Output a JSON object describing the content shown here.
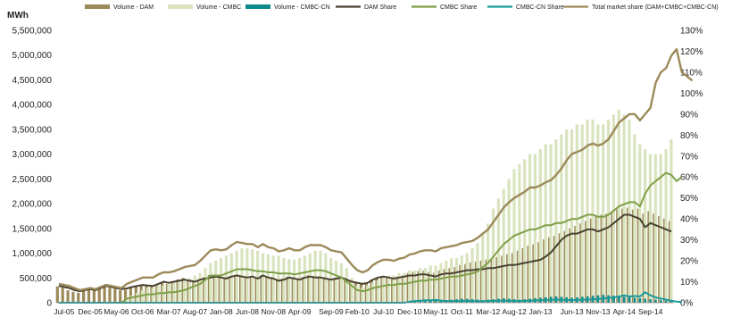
{
  "chart_data": {
    "type": "bar",
    "y_unit": "MWh",
    "y_left_lim": [
      0,
      5500000
    ],
    "y_left_ticks": [
      "0",
      "500,000",
      "1,000,000",
      "1,500,000",
      "2,000,000",
      "2,500,000",
      "3,000,000",
      "3,500,000",
      "4,000,000",
      "4,500,000",
      "5,000,000",
      "5,500,000"
    ],
    "y_right_lim": [
      0,
      130
    ],
    "y_right_ticks": [
      "0%",
      "10%",
      "20%",
      "30%",
      "40%",
      "50%",
      "60%",
      "70%",
      "80%",
      "90%",
      "100%",
      "110%",
      "120%",
      "130%"
    ],
    "x_tick_labels": [
      "Jul-05",
      "Dec-05",
      "May-06",
      "Oct-06",
      "Mar-07",
      "Aug-07",
      "Jan-08",
      "Jun-08",
      "Nov-08",
      "Apr-09",
      "Sep-09",
      "Feb-10",
      "Jul-10",
      "Dec-10",
      "May-11",
      "Oct-11",
      "Mar-12",
      "Aug-12",
      "Jan-13",
      "Jun-13",
      "Nov-13",
      "Apr-14",
      "Sep-14"
    ],
    "month_count": 118,
    "legend_position": "top",
    "legend": [
      {
        "label": "Volume - DAM",
        "kind": "bar",
        "color": "#9c8a5a"
      },
      {
        "label": "Volume - CMBC",
        "kind": "bar",
        "color": "#d9e4bf"
      },
      {
        "label": "Volume - CMBC-CN",
        "kind": "bar",
        "color": "#0e8a8a"
      },
      {
        "label": "DAM Share",
        "kind": "line",
        "color": "#4a4030"
      },
      {
        "label": "CMBC Share",
        "kind": "line",
        "color": "#7f9f48"
      },
      {
        "label": "CMBC-CN Share",
        "kind": "line",
        "color": "#1a9a9a"
      },
      {
        "label": "Total market share (DAM+CMBC+CMBC-CN)",
        "kind": "line",
        "color": "#9c8a5a"
      }
    ],
    "series": [
      {
        "name": "Volume - DAM",
        "axis": "left",
        "type": "bar",
        "color": "#9c8a5a",
        "values": [
          330000,
          300000,
          250000,
          220000,
          200000,
          240000,
          260000,
          250000,
          280000,
          320000,
          300000,
          280000,
          250000,
          260000,
          300000,
          330000,
          350000,
          340000,
          330000,
          360000,
          400000,
          380000,
          420000,
          470000,
          500000,
          450000,
          430000,
          470000,
          520000,
          560000,
          550000,
          520000,
          480000,
          540000,
          560000,
          530000,
          520000,
          540000,
          500000,
          560000,
          520000,
          510000,
          460000,
          490000,
          530000,
          500000,
          480000,
          520000,
          560000,
          540000,
          530000,
          500000,
          470000,
          500000,
          510000,
          480000,
          430000,
          420000,
          380000,
          400000,
          470000,
          510000,
          540000,
          520000,
          500000,
          530000,
          550000,
          600000,
          620000,
          640000,
          650000,
          620000,
          600000,
          650000,
          680000,
          700000,
          720000,
          760000,
          780000,
          810000,
          830000,
          850000,
          870000,
          880000,
          920000,
          950000,
          980000,
          1000000,
          1050000,
          1100000,
          1150000,
          1180000,
          1220000,
          1280000,
          1320000,
          1350000,
          1400000,
          1450000,
          1500000,
          1550000,
          1600000,
          1650000,
          1700000,
          1750000,
          1780000,
          1800000,
          1850000,
          1880000,
          1900000,
          1920000,
          1880000,
          1900000,
          1800000,
          1850000,
          1800000,
          1750000,
          1700000,
          1650000
        ]
      },
      {
        "name": "Volume - CMBC",
        "axis": "left",
        "type": "bar",
        "color": "#d9e4bf",
        "values": [
          0,
          0,
          0,
          0,
          0,
          0,
          0,
          0,
          0,
          0,
          0,
          0,
          0,
          100000,
          150000,
          200000,
          250000,
          300000,
          300000,
          350000,
          350000,
          380000,
          400000,
          420000,
          450000,
          500000,
          550000,
          600000,
          700000,
          800000,
          850000,
          900000,
          950000,
          1000000,
          1050000,
          1100000,
          1100000,
          1080000,
          1050000,
          1000000,
          980000,
          950000,
          950000,
          900000,
          880000,
          870000,
          900000,
          950000,
          1000000,
          1050000,
          1050000,
          1000000,
          900000,
          850000,
          800000,
          700000,
          500000,
          350000,
          300000,
          350000,
          400000,
          450000,
          500000,
          550000,
          550000,
          600000,
          600000,
          650000,
          650000,
          700000,
          700000,
          750000,
          750000,
          800000,
          850000,
          900000,
          900000,
          950000,
          1000000,
          1100000,
          1200000,
          1400000,
          1600000,
          1900000,
          2100000,
          2300000,
          2500000,
          2700000,
          2800000,
          2900000,
          3000000,
          3000000,
          3100000,
          3200000,
          3200000,
          3300000,
          3400000,
          3500000,
          3500000,
          3600000,
          3600000,
          3700000,
          3700000,
          3600000,
          3600000,
          3700000,
          3800000,
          3900000,
          3800000,
          3700000,
          3400000,
          3200000,
          3100000,
          3000000,
          3000000,
          3000000,
          3100000,
          3300000
        ]
      },
      {
        "name": "Volume - CMBC-CN",
        "axis": "left",
        "type": "bar",
        "color": "#0e8a8a",
        "values": [
          0,
          0,
          0,
          0,
          0,
          0,
          0,
          0,
          0,
          0,
          0,
          0,
          0,
          0,
          0,
          0,
          0,
          0,
          0,
          0,
          0,
          0,
          0,
          0,
          0,
          0,
          0,
          0,
          0,
          0,
          0,
          0,
          0,
          0,
          0,
          0,
          0,
          0,
          0,
          0,
          0,
          0,
          0,
          0,
          0,
          0,
          0,
          0,
          0,
          0,
          0,
          0,
          0,
          0,
          0,
          0,
          0,
          0,
          0,
          0,
          0,
          0,
          0,
          0,
          0,
          0,
          0,
          30000,
          40000,
          50000,
          60000,
          60000,
          70000,
          60000,
          50000,
          60000,
          70000,
          80000,
          80000,
          70000,
          60000,
          50000,
          60000,
          70000,
          80000,
          90000,
          80000,
          70000,
          60000,
          70000,
          80000,
          90000,
          100000,
          110000,
          120000,
          130000,
          120000,
          110000,
          100000,
          110000,
          120000,
          130000,
          140000,
          150000,
          160000,
          150000,
          140000,
          130000,
          120000,
          110000,
          100000,
          90000,
          80000,
          70000,
          60000,
          50000,
          40000,
          30000
        ]
      },
      {
        "name": "DAM Share",
        "axis": "right",
        "type": "line",
        "color": "#4a4030",
        "values": [
          8,
          7.5,
          7,
          6,
          5.5,
          6,
          6.5,
          6,
          7,
          8,
          7.5,
          7,
          6.5,
          6.8,
          7.5,
          8,
          8.5,
          8.2,
          8,
          9,
          10,
          9.5,
          10,
          10.5,
          11,
          10.5,
          10,
          11,
          11.5,
          12,
          12.5,
          12,
          11.5,
          12.5,
          13,
          12.5,
          12,
          12.5,
          11.5,
          13,
          12,
          11.5,
          10.5,
          11,
          12,
          11.5,
          11,
          12,
          12.5,
          12,
          12,
          11.5,
          11,
          11.5,
          12,
          11,
          10,
          9.5,
          9,
          9.5,
          11,
          12,
          12.5,
          12,
          11.5,
          12,
          12.5,
          13,
          13,
          13.5,
          13.5,
          13,
          12.5,
          13.5,
          14,
          14,
          14.5,
          15,
          15.5,
          15.5,
          16,
          16,
          16.5,
          16.5,
          17,
          17.5,
          18,
          18,
          18.5,
          19,
          19.5,
          20,
          20.5,
          22,
          24,
          27,
          30,
          32,
          33,
          33,
          34,
          35,
          35,
          34,
          35,
          36,
          38,
          40,
          42,
          42,
          41,
          40,
          36,
          38,
          37,
          36,
          35,
          34
        ]
      },
      {
        "name": "CMBC Share",
        "axis": "right",
        "type": "line",
        "color": "#7f9f48",
        "values": [
          0,
          0,
          0,
          0,
          0,
          0,
          0,
          0,
          0,
          0,
          0,
          0,
          0,
          2,
          2.5,
          3,
          3.5,
          4,
          4,
          4.5,
          4.5,
          5,
          5,
          5.5,
          6,
          7,
          8,
          9,
          11,
          13,
          13,
          13,
          14,
          15,
          16,
          16,
          16,
          15.5,
          15,
          15,
          14.5,
          14.5,
          14,
          14,
          14,
          13.5,
          14,
          14.5,
          15,
          15.5,
          15.5,
          15,
          14,
          13,
          12,
          10,
          8,
          6,
          5.5,
          6,
          7,
          7.5,
          8,
          8.5,
          8.5,
          9,
          9,
          9.5,
          10,
          10.5,
          10.5,
          11,
          11,
          11.5,
          12,
          12.5,
          12.5,
          13,
          13.5,
          14,
          15,
          17,
          19,
          22,
          25,
          28,
          30,
          32,
          33,
          34,
          35,
          35,
          36,
          37,
          37,
          38,
          38,
          39,
          40,
          40,
          41,
          42,
          42,
          41,
          41,
          42,
          44,
          46,
          47,
          48,
          48,
          46,
          52,
          56,
          58,
          60,
          62,
          61,
          58,
          60
        ]
      },
      {
        "name": "CMBC-CN Share",
        "axis": "right",
        "type": "line",
        "color": "#1a9a9a",
        "values": [
          0,
          0,
          0,
          0,
          0,
          0,
          0,
          0,
          0,
          0,
          0,
          0,
          0,
          0,
          0,
          0,
          0,
          0,
          0,
          0,
          0,
          0,
          0,
          0,
          0,
          0,
          0,
          0,
          0,
          0,
          0,
          0,
          0,
          0,
          0,
          0,
          0,
          0,
          0,
          0,
          0,
          0,
          0,
          0,
          0,
          0,
          0,
          0,
          0,
          0,
          0,
          0,
          0,
          0,
          0,
          0,
          0,
          0,
          0,
          0,
          0,
          0,
          0,
          0,
          0,
          0,
          0,
          0.5,
          0.8,
          1,
          1.2,
          1.2,
          1.3,
          1,
          0.8,
          0.8,
          0.8,
          0.8,
          0.8,
          0.8,
          0.7,
          0.7,
          0.8,
          0.9,
          1,
          1,
          0.9,
          0.8,
          0.8,
          0.9,
          1,
          1.1,
          1.2,
          1.3,
          1.4,
          1.5,
          1.4,
          1.3,
          1.2,
          1.3,
          1.4,
          1.5,
          1.6,
          1.8,
          2,
          2.2,
          2.5,
          3,
          3.5,
          3,
          3.2,
          3,
          5,
          3.5,
          2.5,
          2,
          1.5,
          1,
          0.5,
          0.3
        ]
      },
      {
        "name": "Total market share (DAM+CMBC+CMBC-CN)",
        "axis": "right",
        "type": "line",
        "color": "#9c8a5a",
        "values": [
          9,
          8.5,
          8,
          7,
          6,
          6.5,
          7,
          6.5,
          7.5,
          8.5,
          8,
          7.5,
          7,
          9,
          10,
          11,
          12,
          12,
          12,
          13.5,
          14.5,
          14.5,
          15,
          16,
          17,
          17.5,
          18,
          20,
          22.5,
          25,
          25.5,
          25,
          25.5,
          27.5,
          29,
          28.5,
          28,
          28,
          26.5,
          28,
          26.5,
          26,
          24.5,
          25,
          26,
          25,
          25,
          26.5,
          27.5,
          27.5,
          27.5,
          26.5,
          25,
          24.5,
          24,
          21,
          18,
          15.5,
          14.5,
          15.5,
          18,
          19.5,
          20.5,
          20.5,
          20,
          21,
          21.5,
          23,
          23.5,
          24.5,
          25,
          25,
          24.5,
          26,
          26.5,
          27,
          27.5,
          28.5,
          29,
          29.5,
          31,
          33,
          35,
          38.5,
          42,
          45.5,
          48,
          50,
          51.5,
          53,
          55,
          55,
          56,
          57.5,
          58.5,
          61,
          64,
          68,
          71,
          72,
          73,
          75,
          76,
          75,
          76,
          78,
          82,
          86,
          88,
          90,
          90,
          87,
          90,
          93,
          105,
          110,
          112,
          118,
          121,
          110,
          108,
          106
        ]
      }
    ]
  }
}
